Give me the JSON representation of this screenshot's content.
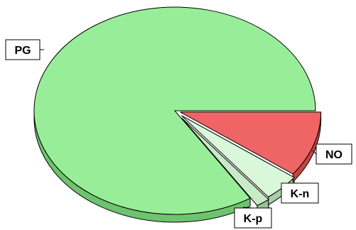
{
  "chart_data": {
    "type": "pie",
    "title": "",
    "style": "3d-exploded",
    "slices": [
      {
        "label": "PG",
        "value": 84.0,
        "color": "#98ee98",
        "side_color": "#6ec46e"
      },
      {
        "label": "NO",
        "value": 10.2,
        "color": "#ef6464",
        "side_color": "#c84444"
      },
      {
        "label": "K-n",
        "value": 4.2,
        "color": "#d9f8d9",
        "side_color": "#a8cfa8"
      },
      {
        "label": "K-p",
        "value": 1.6,
        "color": "#c7ebc7",
        "side_color": "#97c397"
      }
    ],
    "legend": "none"
  }
}
